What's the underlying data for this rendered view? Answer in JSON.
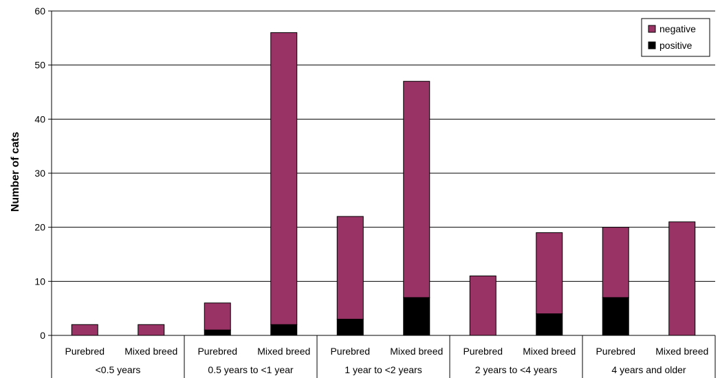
{
  "chart_data": {
    "type": "bar",
    "stacked": true,
    "ylabel": "Number of cats",
    "xlabel": "",
    "ylim": [
      0,
      60
    ],
    "yticks": [
      0,
      10,
      20,
      30,
      40,
      50,
      60
    ],
    "grid": true,
    "legend_position": "top-right",
    "groups": [
      "<0.5 years",
      "0.5 years to <1 year",
      "1 year to <2 years",
      "2 years to <4 years",
      "4 years and older"
    ],
    "group_categories": [
      "Purebred",
      "Mixed breed"
    ],
    "categories": [
      "Purebred",
      "Mixed breed",
      "Purebred",
      "Mixed breed",
      "Purebred",
      "Mixed breed",
      "Purebred",
      "Mixed breed",
      "Purebred",
      "Mixed breed"
    ],
    "legend_order": [
      "negative",
      "positive"
    ],
    "series": [
      {
        "name": "positive",
        "color": "#000000",
        "values": [
          0,
          0,
          1,
          2,
          3,
          7,
          0,
          4,
          7,
          0
        ]
      },
      {
        "name": "negative",
        "color": "#993366",
        "values": [
          2,
          2,
          5,
          54,
          19,
          40,
          11,
          15,
          13,
          21
        ]
      }
    ]
  }
}
